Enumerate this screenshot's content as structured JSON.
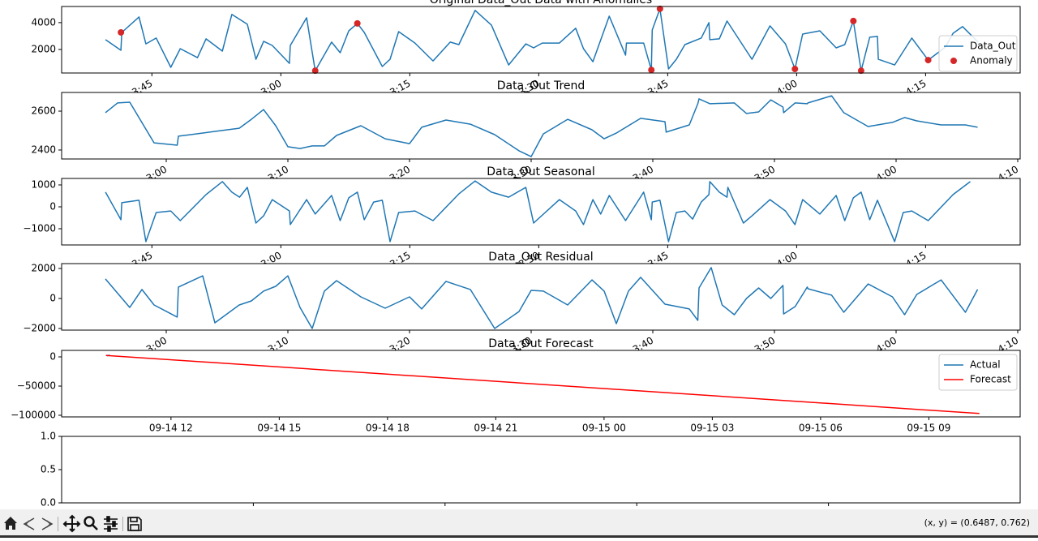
{
  "chart_data": [
    {
      "type": "line",
      "title": "Original Data_Out Data with Anomalies",
      "xlim": [
        34.5,
        146
      ],
      "xtick_rotation": 30,
      "xticks": [
        {
          "value": 45,
          "label": "3:45"
        },
        {
          "value": 60,
          "label": "3:00"
        },
        {
          "value": 75,
          "label": "3:15"
        },
        {
          "value": 90,
          "label": "3:30"
        },
        {
          "value": 105,
          "label": "3:45"
        },
        {
          "value": 120,
          "label": "4:00"
        },
        {
          "value": 135,
          "label": "4:15"
        }
      ],
      "ylim": [
        250,
        5200
      ],
      "yticks": [
        2000,
        4000
      ],
      "legend": "upper right",
      "series": [
        {
          "name": "Data_Out",
          "color": "#1f77b4",
          "x": [
            39.6,
            41.4,
            41.5,
            43.5,
            44.3,
            45.5,
            47.2,
            48.3,
            50.3,
            51.3,
            53.2,
            54.3,
            56.1,
            57.1,
            58.0,
            59.0,
            61.0,
            61.1,
            63.0,
            64.0,
            65.9,
            66.9,
            67.9,
            68.9,
            69.7,
            71.8,
            72.7,
            73.7,
            75.6,
            77.7,
            79.7,
            80.7,
            82.6,
            84.5,
            86.5,
            88.5,
            89.4,
            90.4,
            92.4,
            94.3,
            95.2,
            96.3,
            98.2,
            100.1,
            100.2,
            102.2,
            103.1,
            103.2,
            104.1,
            105.1,
            106.0,
            107.0,
            108.9,
            109.8,
            109.9,
            111.0,
            111.9,
            114.8,
            116.9,
            118.7,
            119.8,
            120.7,
            122.7,
            124.6,
            125.6,
            126.6,
            127.5,
            128.5,
            129.4,
            129.5,
            131.4,
            133.4,
            135.3,
            137.3,
            138.2,
            139.3,
            141.1
          ],
          "values": [
            2730,
            1940,
            3270,
            4420,
            2420,
            2850,
            670,
            2060,
            1390,
            2790,
            1880,
            4610,
            3880,
            1270,
            2610,
            2300,
            970,
            2300,
            4360,
            420,
            2550,
            1760,
            3390,
            3940,
            3270,
            730,
            1270,
            3330,
            2480,
            1150,
            2550,
            2360,
            4910,
            3820,
            850,
            2420,
            2120,
            2480,
            2480,
            3580,
            2060,
            1090,
            4480,
            1580,
            2480,
            2480,
            480,
            3450,
            5030,
            550,
            1270,
            2360,
            2850,
            4000,
            2730,
            2790,
            4120,
            1270,
            3760,
            2420,
            550,
            3150,
            3390,
            2120,
            2360,
            4120,
            420,
            2910,
            2970,
            1270,
            850,
            2850,
            1210,
            2180,
            3210,
            3700,
            2550
          ]
        },
        {
          "name": "Anomaly",
          "color": "#d62728",
          "type": "scatter",
          "x": [
            41.4,
            64.0,
            68.9,
            103.1,
            104.1,
            119.8,
            126.6,
            127.5,
            135.3
          ],
          "values": [
            3270,
            420,
            3940,
            480,
            5030,
            550,
            4120,
            420,
            1210
          ]
        }
      ]
    },
    {
      "type": "line",
      "title": "Data_Out Trend",
      "xlim": [
        51.4,
        130.2
      ],
      "xtick_rotation": 30,
      "xticks": [
        {
          "value": 60,
          "label": "3:00"
        },
        {
          "value": 70,
          "label": "3:10"
        },
        {
          "value": 80,
          "label": "3:20"
        },
        {
          "value": 90,
          "label": "3:30"
        },
        {
          "value": 100,
          "label": "3:40"
        },
        {
          "value": 110,
          "label": "3:50"
        },
        {
          "value": 120,
          "label": "4:00"
        },
        {
          "value": 130,
          "label": "4:10"
        }
      ],
      "ylim": [
        2354,
        2696
      ],
      "yticks": [
        2400,
        2600
      ],
      "series": [
        {
          "name": "trend",
          "color": "#1f77b4",
          "x": [
            55.0,
            56.0,
            57.0,
            59.0,
            60.9,
            61.0,
            62.0,
            64.0,
            66.0,
            67.0,
            68.0,
            69.0,
            70.0,
            71.0,
            72.0,
            73.0,
            74.0,
            76.0,
            78.0,
            80.0,
            81.0,
            83.0,
            85.0,
            87.0,
            89.0,
            90.0,
            91.0,
            93.0,
            95.0,
            96.0,
            97.0,
            99.0,
            101.0,
            101.1,
            103.0,
            103.7,
            103.8,
            104.7,
            106.7,
            107.7,
            108.7,
            109.7,
            110.7,
            110.75,
            111.7,
            112.7,
            112.75,
            114.7,
            115.7,
            117.7,
            119.7,
            120.7,
            121.7,
            123.7,
            125.7,
            126.7
          ],
          "values": [
            2592,
            2642,
            2646,
            2437,
            2425,
            2471,
            2479,
            2496,
            2512,
            2558,
            2608,
            2525,
            2417,
            2408,
            2421,
            2421,
            2475,
            2525,
            2458,
            2433,
            2517,
            2554,
            2533,
            2479,
            2396,
            2366,
            2483,
            2558,
            2504,
            2458,
            2487,
            2563,
            2546,
            2492,
            2529,
            2638,
            2663,
            2638,
            2642,
            2588,
            2596,
            2658,
            2621,
            2592,
            2642,
            2638,
            2642,
            2679,
            2592,
            2521,
            2542,
            2567,
            2550,
            2529,
            2529,
            2517
          ]
        }
      ]
    },
    {
      "type": "line",
      "title": "Data_Out Seasonal",
      "xlim": [
        34.5,
        146
      ],
      "xtick_rotation": 30,
      "xticks": [
        {
          "value": 45,
          "label": "3:45"
        },
        {
          "value": 60,
          "label": "3:00"
        },
        {
          "value": 75,
          "label": "3:15"
        },
        {
          "value": 90,
          "label": "3:30"
        },
        {
          "value": 105,
          "label": "3:45"
        },
        {
          "value": 120,
          "label": "4:00"
        },
        {
          "value": 135,
          "label": "4:15"
        }
      ],
      "ylim": [
        -1740,
        1296
      ],
      "yticks": [
        {
          "value": -1000,
          "label": "−1000"
        },
        0,
        1000
      ],
      "series": [
        {
          "name": "seasonal",
          "color": "#1f77b4",
          "x": [
            39.6,
            41.4,
            41.5,
            43.5,
            44.3,
            45.5,
            47.2,
            48.3,
            51.3,
            53.2,
            54.3,
            55.2,
            56.1,
            57.1,
            58.0,
            59.0,
            61.0,
            61.1,
            63.0,
            64.0,
            65.9,
            66.9,
            67.9,
            68.9,
            69.7,
            70.8,
            71.8,
            72.7,
            73.7,
            75.6,
            77.7,
            80.7,
            82.6,
            84.5,
            86.5,
            88.5,
            89.4,
            92.4,
            94.3,
            95.2,
            96.3,
            97.2,
            98.2,
            100.1,
            102.2,
            103.1,
            103.2,
            104.1,
            105.1,
            106.0,
            107.0,
            107.9,
            108.9,
            109.8,
            109.9,
            111.0,
            111.9,
            112.0,
            113.8,
            114.8,
            116.9,
            118.7,
            119.8,
            120.7,
            122.7,
            124.6,
            125.6,
            126.6,
            127.5,
            128.5,
            129.4,
            131.4,
            132.4,
            133.4,
            135.3,
            138.2,
            140.2
          ],
          "values": [
            670,
            -590,
            190,
            300,
            -1590,
            -260,
            -190,
            -630,
            560,
            1150,
            670,
            440,
            890,
            -740,
            -410,
            330,
            -190,
            -810,
            330,
            -330,
            520,
            -630,
            410,
            670,
            -590,
            220,
            300,
            -1590,
            -260,
            -190,
            -630,
            590,
            1180,
            670,
            440,
            890,
            -740,
            330,
            -190,
            -810,
            330,
            -330,
            520,
            -630,
            670,
            -590,
            220,
            300,
            -1590,
            -260,
            -190,
            -560,
            220,
            560,
            1150,
            670,
            440,
            890,
            -740,
            -410,
            330,
            -190,
            -810,
            330,
            -330,
            520,
            -630,
            410,
            670,
            -590,
            300,
            -1590,
            -260,
            -190,
            -630,
            560,
            1150
          ]
        }
      ]
    },
    {
      "type": "line",
      "title": "Data_Out Residual",
      "xlim": [
        51.4,
        130.2
      ],
      "xtick_rotation": 30,
      "xticks": [
        {
          "value": 60,
          "label": "3:00"
        },
        {
          "value": 70,
          "label": "3:10"
        },
        {
          "value": 80,
          "label": "3:20"
        },
        {
          "value": 90,
          "label": "3:30"
        },
        {
          "value": 100,
          "label": "3:40"
        },
        {
          "value": 110,
          "label": "3:50"
        },
        {
          "value": 120,
          "label": "4:00"
        },
        {
          "value": 130,
          "label": "4:10"
        }
      ],
      "ylim": [
        -2108,
        2324
      ],
      "yticks": [
        {
          "value": -2000,
          "label": "−2000"
        },
        0,
        2000
      ],
      "series": [
        {
          "name": "resid",
          "color": "#1f77b4",
          "x": [
            55.0,
            57.0,
            58.0,
            59.0,
            60.9,
            61.0,
            63.0,
            64.0,
            66.0,
            67.0,
            68.0,
            69.0,
            70.0,
            71.0,
            72.0,
            73.0,
            74.0,
            76.0,
            78.0,
            80.0,
            81.0,
            83.0,
            85.0,
            87.0,
            89.0,
            90.0,
            91.0,
            93.0,
            95.0,
            96.0,
            97.0,
            98.0,
            99.0,
            101.0,
            103.0,
            103.7,
            103.8,
            104.8,
            105.7,
            106.7,
            107.7,
            108.7,
            109.7,
            110.7,
            110.75,
            111.7,
            112.7,
            112.75,
            114.7,
            115.7,
            117.7,
            119.7,
            120.7,
            121.7,
            123.7,
            125.7,
            126.7
          ],
          "values": [
            1300,
            -600,
            600,
            -430,
            -1240,
            760,
            1510,
            -1620,
            -430,
            -160,
            490,
            810,
            1510,
            -600,
            -2000,
            490,
            1190,
            110,
            -650,
            110,
            -700,
            1140,
            600,
            -2000,
            -870,
            540,
            490,
            -430,
            1240,
            490,
            -1680,
            490,
            1410,
            -380,
            -700,
            -1460,
            700,
            2060,
            -430,
            -1080,
            0,
            700,
            0,
            870,
            -1030,
            -540,
            760,
            650,
            220,
            -920,
            970,
            110,
            -1080,
            270,
            1240,
            -920,
            600
          ]
        }
      ]
    },
    {
      "type": "line",
      "title": "Data_Out Forecast",
      "xlim": [
        8.97,
        35.53
      ],
      "xticks": [
        {
          "value": 12,
          "label": "09-14 12"
        },
        {
          "value": 15,
          "label": "09-14 15"
        },
        {
          "value": 18,
          "label": "09-14 18"
        },
        {
          "value": 21,
          "label": "09-14 21"
        },
        {
          "value": 24,
          "label": "09-15 00"
        },
        {
          "value": 27,
          "label": "09-15 03"
        },
        {
          "value": 30,
          "label": "09-15 06"
        },
        {
          "value": 33,
          "label": "09-15 09"
        }
      ],
      "ylim": [
        -102800,
        11100
      ],
      "yticks": [
        {
          "value": -100000,
          "label": "−100000"
        },
        {
          "value": -50000,
          "label": "−50000"
        },
        0
      ],
      "legend": "upper right",
      "series": [
        {
          "name": "Actual",
          "color": "#1f77b4",
          "x": [
            10.2,
            10.25,
            10.3
          ],
          "values": [
            2700,
            1900,
            3300
          ]
        },
        {
          "name": "Forecast",
          "color": "#ff0000",
          "x": [
            10.2,
            34.4
          ],
          "values": [
            2500,
            -97000
          ]
        }
      ]
    },
    {
      "type": "line",
      "xlim": [
        0,
        1
      ],
      "xticks": [
        0.2,
        0.4,
        0.6,
        0.8
      ],
      "xticklabels": false,
      "ylim": [
        0,
        1
      ],
      "yticks": [
        {
          "value": 0,
          "label": "0.0"
        },
        0.5,
        {
          "value": 1,
          "label": "1.0"
        }
      ],
      "series": []
    }
  ],
  "toolbar": {
    "status": "(x, y) = (0.6487, 0.762)"
  }
}
